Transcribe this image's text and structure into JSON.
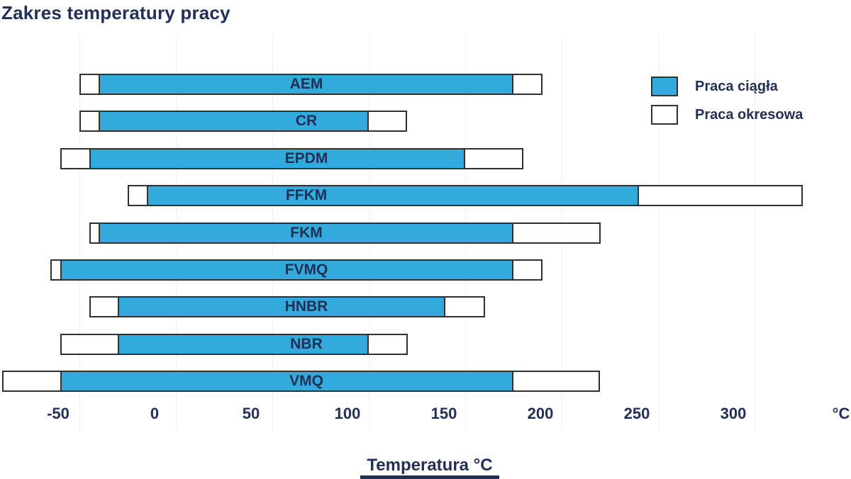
{
  "title": "Zakres temperatury pracy",
  "legend": {
    "items": [
      {
        "label": "Praca ciągła",
        "swatch_color": "#32AADC"
      },
      {
        "label": "Praca okresowa",
        "swatch_color": "#FFFFFF"
      }
    ]
  },
  "axis": {
    "title": "Temperatura °C",
    "unit_label": "°C"
  },
  "colors": {
    "blue": "#32AADC",
    "navy": "#223055",
    "outline": "#303030",
    "grid": "#EFEFEF"
  },
  "chart_data": {
    "type": "bar",
    "orientation": "horizontal",
    "title": "Zakres temperatury pracy",
    "xlabel": "Temperatura °C",
    "x_unit": "°C",
    "xlim": [
      -91,
      335
    ],
    "x_ticks": [
      -50,
      0,
      50,
      100,
      150,
      200,
      250,
      300
    ],
    "grid": true,
    "legend_position": "top-right",
    "series_meaning": {
      "praca_ciagla": "continuous operation temperature range (blue segment)",
      "praca_okresowa": "intermittent operation temperature range (white outer bar)"
    },
    "materials": [
      {
        "label": "AEM",
        "praca_okresowa": [
          -50,
          190
        ],
        "praca_ciagla": [
          -40,
          175
        ]
      },
      {
        "label": "CR",
        "praca_okresowa": [
          -50,
          120
        ],
        "praca_ciagla": [
          -40,
          100
        ]
      },
      {
        "label": "EPDM",
        "praca_okresowa": [
          -60,
          180
        ],
        "praca_ciagla": [
          -45,
          150
        ]
      },
      {
        "label": "FFKM",
        "praca_okresowa": [
          -25,
          325
        ],
        "praca_ciagla": [
          -15,
          240
        ]
      },
      {
        "label": "FKM",
        "praca_okresowa": [
          -45,
          220
        ],
        "praca_ciagla": [
          -40,
          175
        ]
      },
      {
        "label": "FVMQ",
        "praca_okresowa": [
          -65,
          190
        ],
        "praca_ciagla": [
          -60,
          175
        ]
      },
      {
        "label": "HNBR",
        "praca_okresowa": [
          -45,
          160
        ],
        "praca_ciagla": [
          -30,
          140
        ]
      },
      {
        "label": "NBR",
        "praca_okresowa": [
          -60,
          120
        ],
        "praca_ciagla": [
          -30,
          100
        ]
      },
      {
        "label": "VMQ",
        "praca_okresowa": [
          -90,
          220
        ],
        "praca_ciagla": [
          -60,
          175
        ]
      }
    ]
  }
}
